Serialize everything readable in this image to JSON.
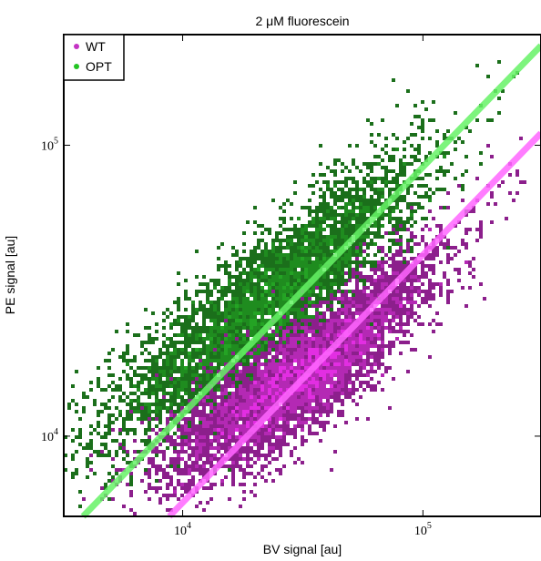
{
  "chart_data": {
    "type": "scatter",
    "title": "2 μM fluorescein",
    "xlabel": "BV signal [au]",
    "ylabel": "PE signal [au]",
    "xscale": "log",
    "yscale": "log",
    "xlim": [
      3200,
      310000
    ],
    "ylim": [
      5300,
      240000
    ],
    "x_ticks": [
      {
        "value": 10000,
        "base": "10",
        "exp": "4"
      },
      {
        "value": 100000,
        "base": "10",
        "exp": "5"
      }
    ],
    "y_ticks": [
      {
        "value": 10000,
        "base": "10",
        "exp": "4"
      },
      {
        "value": 100000,
        "base": "10",
        "exp": "5"
      }
    ],
    "grid": false,
    "legend_position": "top-left",
    "series": [
      {
        "name": "WT",
        "marker_color": "#c433c4",
        "density_colors": [
          "#8c1f8c",
          "#b429b4",
          "#e22ee2"
        ],
        "fit_color": "#ff66ff",
        "fit_line": [
          [
            8800,
            5300
          ],
          [
            310000,
            110000
          ]
        ],
        "cloud": [
          {
            "x": 3500,
            "y": 5800
          },
          {
            "x": 6000,
            "y": 7200
          },
          {
            "x": 9000,
            "y": 8500
          },
          {
            "x": 14000,
            "y": 10500
          },
          {
            "x": 20000,
            "y": 12500
          },
          {
            "x": 28000,
            "y": 15000
          },
          {
            "x": 40000,
            "y": 18000
          },
          {
            "x": 60000,
            "y": 24000
          },
          {
            "x": 90000,
            "y": 33000
          },
          {
            "x": 140000,
            "y": 45000
          },
          {
            "x": 200000,
            "y": 60000
          }
        ]
      },
      {
        "name": "OPT",
        "marker_color": "#22c422",
        "density_colors": [
          "#1b6f1b",
          "#1f8c1f",
          "#24a324"
        ],
        "fit_color": "#66f266",
        "fit_line": [
          [
            3850,
            5300
          ],
          [
            310000,
            220000
          ]
        ],
        "cloud": [
          {
            "x": 3500,
            "y": 9500
          },
          {
            "x": 6000,
            "y": 13000
          },
          {
            "x": 9000,
            "y": 16000
          },
          {
            "x": 13000,
            "y": 20000
          },
          {
            "x": 19000,
            "y": 25000
          },
          {
            "x": 27000,
            "y": 31000
          },
          {
            "x": 38000,
            "y": 40000
          },
          {
            "x": 55000,
            "y": 52000
          },
          {
            "x": 80000,
            "y": 68000
          },
          {
            "x": 120000,
            "y": 85000
          },
          {
            "x": 170000,
            "y": 115000
          }
        ]
      }
    ]
  }
}
